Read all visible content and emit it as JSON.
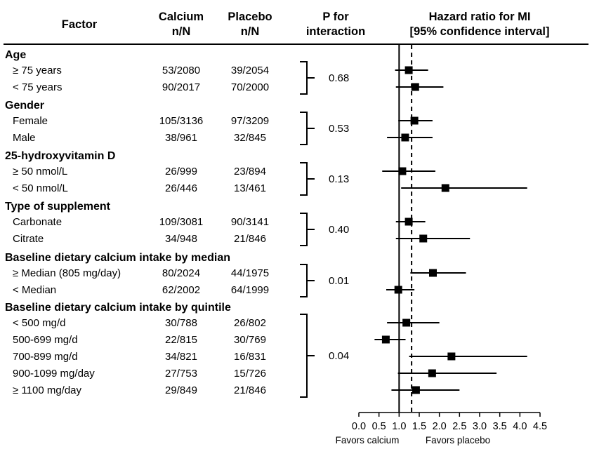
{
  "headers": {
    "factor": "Factor",
    "calcium": [
      "Calcium",
      "n/N"
    ],
    "placebo": [
      "Placebo",
      "n/N"
    ],
    "p_interaction": [
      "P for",
      "interaction"
    ],
    "hazard": [
      "Hazard ratio for MI",
      "[95% confidence interval]"
    ]
  },
  "groups": [
    {
      "title": "Age",
      "p": "0.68",
      "rows": [
        {
          "label": "≥ 75 years",
          "calcium": "53/2080",
          "placebo": "39/2054"
        },
        {
          "label": "< 75 years",
          "calcium": "90/2017",
          "placebo": "70/2000"
        }
      ]
    },
    {
      "title": "Gender",
      "p": "0.53",
      "rows": [
        {
          "label": "Female",
          "calcium": "105/3136",
          "placebo": "97/3209"
        },
        {
          "label": "Male",
          "calcium": "38/961",
          "placebo": "32/845"
        }
      ]
    },
    {
      "title": "25-hydroxyvitamin D",
      "p": "0.13",
      "rows": [
        {
          "label": "≥ 50 nmol/L",
          "calcium": "26/999",
          "placebo": "23/894"
        },
        {
          "label": "< 50 nmol/L",
          "calcium": "26/446",
          "placebo": "13/461"
        }
      ]
    },
    {
      "title": "Type of supplement",
      "p": "0.40",
      "rows": [
        {
          "label": "Carbonate",
          "calcium": "109/3081",
          "placebo": "90/3141"
        },
        {
          "label": "Citrate",
          "calcium": "34/948",
          "placebo": "21/846"
        }
      ]
    },
    {
      "title": "Baseline dietary calcium intake by median",
      "p": "0.01",
      "rows": [
        {
          "label": "≥ Median (805 mg/day)",
          "calcium": "80/2024",
          "placebo": "44/1975"
        },
        {
          "label": "< Median",
          "calcium": "62/2002",
          "placebo": "64/1999"
        }
      ]
    },
    {
      "title": "Baseline dietary calcium intake by quintile",
      "p": "0.04",
      "rows": [
        {
          "label": "< 500 mg/d",
          "calcium": "30/788",
          "placebo": "26/802"
        },
        {
          "label": "500-699 mg/d",
          "calcium": "22/815",
          "placebo": "30/769"
        },
        {
          "label": "700-899 mg/d",
          "calcium": "34/821",
          "placebo": "16/831"
        },
        {
          "label": "900-1099 mg/day",
          "calcium": "27/753",
          "placebo": "15/726"
        },
        {
          "label": "≥ 1100 mg/day",
          "calcium": "29/849",
          "placebo": "21/846"
        }
      ]
    }
  ],
  "chart_data": {
    "type": "forest",
    "xlim": [
      0.0,
      4.5
    ],
    "x_ticks": [
      "0.0",
      "0.5",
      "1.0",
      "1.5",
      "2.0",
      "2.5",
      "3.0",
      "3.5",
      "4.0",
      "4.5"
    ],
    "reference_line": 1.0,
    "overall_dashed_line": 1.31,
    "footer_left": "Favors calcium",
    "footer_right": "Favors placebo",
    "estimates": [
      {
        "hr": 1.24,
        "lo": 0.9,
        "hi": 1.72
      },
      {
        "hr": 1.4,
        "lo": 0.92,
        "hi": 2.1
      },
      {
        "hr": 1.38,
        "lo": 0.98,
        "hi": 1.83
      },
      {
        "hr": 1.15,
        "lo": 0.7,
        "hi": 1.83
      },
      {
        "hr": 1.08,
        "lo": 0.58,
        "hi": 1.9
      },
      {
        "hr": 2.15,
        "lo": 1.05,
        "hi": 4.18
      },
      {
        "hr": 1.24,
        "lo": 0.92,
        "hi": 1.65
      },
      {
        "hr": 1.6,
        "lo": 0.92,
        "hi": 2.76
      },
      {
        "hr": 1.84,
        "lo": 1.28,
        "hi": 2.66
      },
      {
        "hr": 0.98,
        "lo": 0.68,
        "hi": 1.38
      },
      {
        "hr": 1.18,
        "lo": 0.7,
        "hi": 2.0
      },
      {
        "hr": 0.67,
        "lo": 0.39,
        "hi": 1.16
      },
      {
        "hr": 2.3,
        "lo": 1.25,
        "hi": 4.18
      },
      {
        "hr": 1.82,
        "lo": 0.97,
        "hi": 3.42
      },
      {
        "hr": 1.42,
        "lo": 0.81,
        "hi": 2.5
      }
    ]
  }
}
